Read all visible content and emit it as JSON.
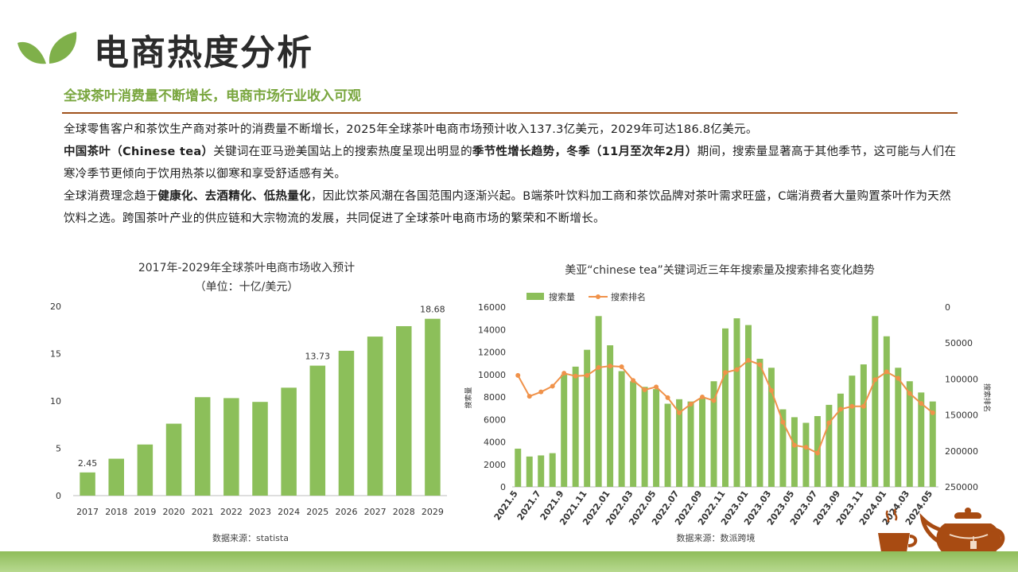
{
  "header": {
    "title": "电商热度分析",
    "subtitle": "全球茶叶消费量不断增长，电商市场行业收入可观"
  },
  "paragraphs": [
    [
      {
        "t": "全球零售客户和茶饮生产商对茶叶的消费量不断增长，2025年全球茶叶电商市场预计收入137.3亿美元，2029年可达186.8亿美元。",
        "b": false
      }
    ],
    [
      {
        "t": "中国茶叶（Chinese tea）",
        "b": true
      },
      {
        "t": "关键词在亚马逊美国站上的搜索热度呈现出明显的",
        "b": false
      },
      {
        "t": "季节性增长趋势，冬季（11月至次年2月）",
        "b": true
      },
      {
        "t": "期间，搜索量显著高于其他季节，这可能与人们在寒冷季节更倾向于饮用热茶以御寒和享受舒适感有关。",
        "b": false
      }
    ],
    [
      {
        "t": "全球消费理念趋于",
        "b": false
      },
      {
        "t": "健康化、去酒精化、低热量化",
        "b": true
      },
      {
        "t": "，因此饮茶风潮在各国范围内逐渐兴起。B端茶叶饮料加工商和茶饮品牌对茶叶需求旺盛，C端消费者大量购置茶叶作为天然饮料之选。跨国茶叶产业的供应链和大宗物流的发展，共同促进了全球茶叶电商市场的繁荣和不断增长。",
        "b": false
      }
    ]
  ],
  "sources": {
    "chart1": "数据来源：statista",
    "chart2": "数据来源：数派跨境"
  },
  "colors": {
    "bar": "#8cbf5a",
    "line": "#f0924a",
    "accent_green": "#79a63e",
    "rule": "#a0521c",
    "teaware": "#a84b12"
  },
  "icons": [
    "leaf-logo-icon",
    "tea-cup-icon",
    "teapot-icon"
  ],
  "chart_data": [
    {
      "type": "bar",
      "title": "2017年-2029年全球茶叶电商市场收入预计",
      "subtitle": "（单位：十亿/美元）",
      "categories": [
        "2017",
        "2018",
        "2019",
        "2020",
        "2021",
        "2022",
        "2023",
        "2024",
        "2025",
        "2026",
        "2027",
        "2028",
        "2029"
      ],
      "values": [
        2.45,
        3.9,
        5.4,
        7.6,
        10.4,
        10.3,
        9.9,
        11.4,
        13.73,
        15.3,
        16.8,
        17.9,
        18.68
      ],
      "data_labels": {
        "0": "2.45",
        "8": "13.73",
        "12": "18.68"
      },
      "ylim": [
        0,
        20
      ],
      "yticks": [
        0,
        5,
        10,
        15,
        20
      ],
      "grid": false
    },
    {
      "type": "bar+line",
      "title": "美亚“chinese tea”关键词近三年年搜索量及搜索排名变化趋势",
      "legend": [
        "搜索量",
        "搜索排名"
      ],
      "legend_position": "top-left",
      "categories": [
        "2021.5",
        "2021.6",
        "2021.7",
        "2021.8",
        "2021.9",
        "2021.10",
        "2021.11",
        "2021.12",
        "2022.01",
        "2022.02",
        "2022.03",
        "2022.04",
        "2022.05",
        "2022.06",
        "2022.07",
        "2022.08",
        "2022.09",
        "2022.10",
        "2022.11",
        "2022.12",
        "2023.01",
        "2023.02",
        "2023.03",
        "2023.04",
        "2023.05",
        "2023.06",
        "2023.07",
        "2023.08",
        "2023.09",
        "2023.10",
        "2023.11",
        "2023.12",
        "2024.01",
        "2024.02",
        "2024.03",
        "2024.04",
        "2024.05"
      ],
      "tick_labels": [
        "2021.5",
        "2021.7",
        "2021.9",
        "2021.11",
        "2022.01",
        "2022.03",
        "2022.05",
        "2022.07",
        "2022.09",
        "2022.11",
        "2023.01",
        "2023.03",
        "2023.05",
        "2023.07",
        "2023.09",
        "2023.11",
        "2024.01",
        "2024.03",
        "2024.05"
      ],
      "series": [
        {
          "name": "搜索量",
          "kind": "bar",
          "axis": "left",
          "values": [
            3400,
            2700,
            2800,
            3000,
            10000,
            10700,
            12200,
            15200,
            12600,
            10300,
            9400,
            8900,
            8700,
            7400,
            7800,
            7600,
            7900,
            9400,
            14100,
            15000,
            14400,
            11400,
            10600,
            6900,
            6200,
            5700,
            6300,
            7300,
            8300,
            9900,
            10900,
            15200,
            13400,
            10600,
            9400,
            8400,
            7600
          ]
        },
        {
          "name": "搜索排名",
          "kind": "line",
          "axis": "right",
          "values": [
            95000,
            124000,
            118000,
            110000,
            92000,
            96000,
            95000,
            84000,
            82000,
            83000,
            102000,
            115000,
            111000,
            126000,
            147000,
            135000,
            125000,
            130000,
            91000,
            87000,
            74000,
            80000,
            116000,
            160000,
            192000,
            195000,
            203000,
            161000,
            142000,
            138000,
            138000,
            101000,
            90000,
            99000,
            120000,
            134000,
            147000
          ]
        }
      ],
      "ylabel": "搜索量",
      "y2label": "搜索排名",
      "ylim": [
        0,
        16000
      ],
      "yticks": [
        0,
        2000,
        4000,
        6000,
        8000,
        10000,
        12000,
        14000,
        16000
      ],
      "y2lim": [
        0,
        250000
      ],
      "y2_reversed": true,
      "y2ticks": [
        0,
        50000,
        100000,
        150000,
        200000,
        250000
      ],
      "grid": false
    }
  ]
}
